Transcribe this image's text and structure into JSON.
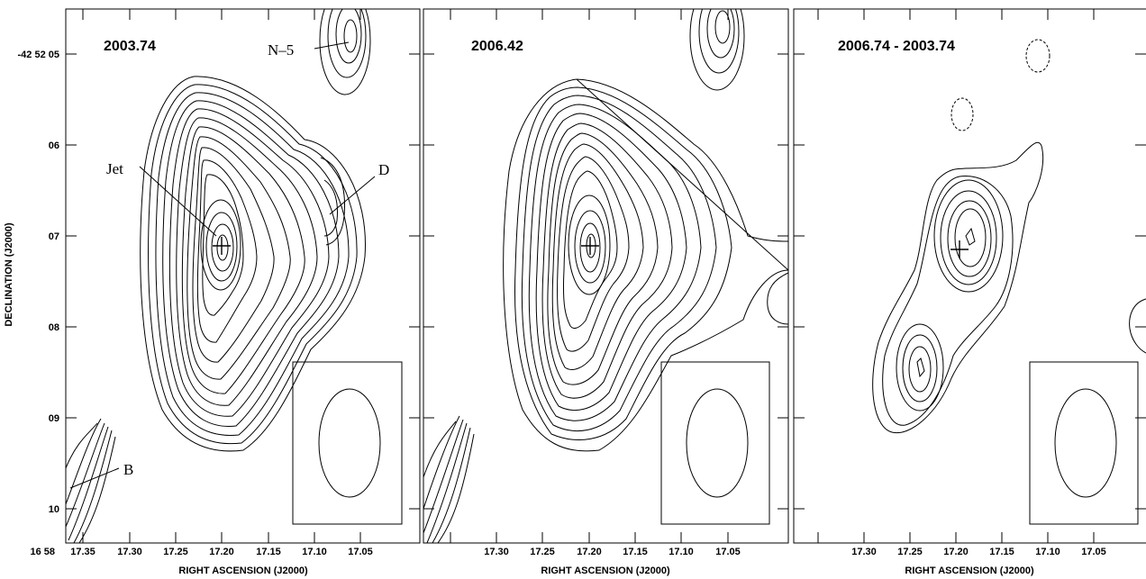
{
  "panels": [
    {
      "title": "2003.74"
    },
    {
      "title": "2006.42"
    },
    {
      "title": "2006.74 - 2003.74"
    }
  ],
  "axes": {
    "x_label": "RIGHT ASCENSION (J2000)",
    "y_label": "DECLINATION (J2000)",
    "x_ticks": [
      "17.35",
      "17.30",
      "17.25",
      "17.20",
      "17.15",
      "17.10",
      "17.05"
    ],
    "x_first_prefix": "16 58",
    "y_ticks": [
      "-42 52 05",
      "06",
      "07",
      "08",
      "09",
      "10"
    ]
  },
  "annotations": {
    "jet": "Jet",
    "d": "D",
    "n5": "N–5",
    "b": "B"
  }
}
